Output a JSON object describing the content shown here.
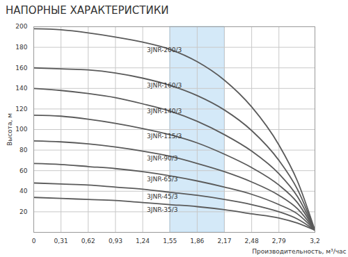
{
  "chart_data": {
    "type": "line",
    "title": "НАПОРНЫЕ ХАРАКТЕРИСТИКИ",
    "x_label": "Производительность, м³/час",
    "y_label": "Высота, м",
    "color": "#5a5a5a",
    "grid": true,
    "band": [
      1.55,
      2.17
    ],
    "x": [
      0,
      0.31,
      0.62,
      0.93,
      1.24,
      1.55,
      1.86,
      2.17,
      2.48,
      2.79,
      3.0,
      3.2
    ],
    "series": [
      {
        "name": "3JNR-200/3",
        "values": [
          198,
          197,
          194,
          190,
          185,
          178,
          166,
          148,
          122,
          85,
          50,
          2
        ]
      },
      {
        "name": "3JNR-160/3",
        "values": [
          160,
          159,
          158,
          155,
          150,
          143,
          133,
          119,
          99,
          70,
          42,
          2
        ]
      },
      {
        "name": "3JNR-140/3",
        "values": [
          140,
          138,
          135,
          131,
          125,
          118,
          108,
          95,
          79,
          57,
          35,
          2
        ]
      },
      {
        "name": "3JNR-115/3",
        "values": [
          114,
          113,
          110,
          106,
          101,
          95,
          87,
          76,
          63,
          46,
          29,
          2
        ]
      },
      {
        "name": "3JNR-90/3",
        "values": [
          89,
          88,
          86,
          83,
          79,
          74,
          67,
          59,
          49,
          36,
          23,
          2
        ]
      },
      {
        "name": "3JNR-65/3",
        "values": [
          67,
          66,
          64,
          62,
          59,
          55,
          50,
          44,
          37,
          27,
          18,
          2
        ]
      },
      {
        "name": "3JNR-45/3",
        "values": [
          48,
          47,
          46,
          44,
          42,
          39,
          36,
          32,
          27,
          20,
          13,
          2
        ]
      },
      {
        "name": "3JNR-35/3",
        "values": [
          34,
          33,
          32,
          31,
          29,
          27,
          25,
          22,
          18,
          14,
          9,
          2
        ]
      }
    ],
    "xlim": [
      0,
      3.2
    ],
    "xticks": [
      0,
      {
        "value": 0.31,
        "label": "0,31"
      },
      {
        "value": 0.62,
        "label": "0,62"
      },
      {
        "value": 0.93,
        "label": "0,93"
      },
      {
        "value": 1.24,
        "label": "1,24"
      },
      {
        "value": 1.55,
        "label": "1,55"
      },
      {
        "value": 1.86,
        "label": "1,86"
      },
      {
        "value": 2.17,
        "label": "2,17"
      },
      {
        "value": 2.48,
        "label": "2,48"
      },
      {
        "value": 2.79,
        "label": "2,79"
      },
      {
        "value": 3.2,
        "label": "3,2"
      }
    ],
    "ylim": [
      0,
      200
    ],
    "yticks": [
      20,
      40,
      60,
      80,
      100,
      120,
      140,
      160,
      180,
      200
    ]
  }
}
